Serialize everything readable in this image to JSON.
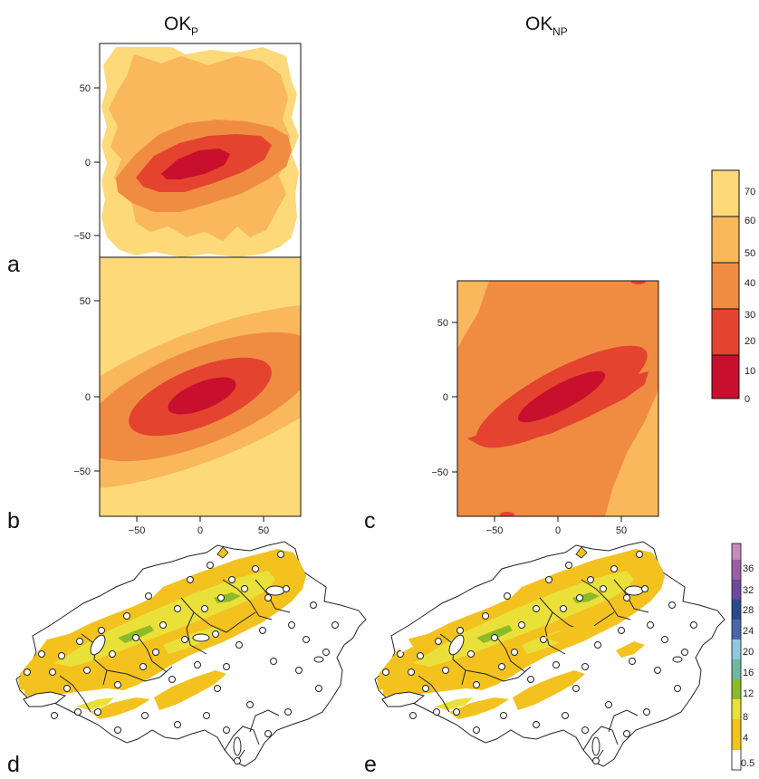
{
  "figure": {
    "col_left": {
      "main": "OK",
      "sub": "P"
    },
    "col_right": {
      "main": "OK",
      "sub": "NP"
    },
    "panel_labels": {
      "a": "a",
      "b": "b",
      "c": "c",
      "d": "d",
      "e": "e"
    }
  },
  "chart_data": [
    {
      "type": "heatmap",
      "panel": "a",
      "description_type": "filled contour",
      "xlim": [
        -80,
        80
      ],
      "ylim": [
        -80,
        80
      ],
      "ytick_labels": [
        "50",
        "0",
        "−50"
      ],
      "center_value_band": "0-10",
      "ellipse_angle_deg": 22
    },
    {
      "type": "heatmap",
      "panel": "b",
      "xlim": [
        -80,
        80
      ],
      "ylim": [
        -80,
        80
      ],
      "xtick_labels": [
        "−50",
        "0",
        "50"
      ],
      "ytick_labels": [
        "50",
        "0",
        "−50"
      ],
      "ellipse_angle_deg": 22
    },
    {
      "type": "heatmap",
      "panel": "c",
      "xlim": [
        -80,
        80
      ],
      "ylim": [
        -80,
        80
      ],
      "xtick_labels": [
        "−50",
        "0",
        "50"
      ],
      "ytick_labels": [
        "50",
        "0",
        "−50"
      ],
      "ellipse_angle_deg": 28
    },
    {
      "type": "heatmap",
      "panel": "d",
      "map": "Switzerland",
      "station_markers": "open circles"
    },
    {
      "type": "heatmap",
      "panel": "e",
      "map": "Switzerland",
      "station_markers": "open circles"
    }
  ],
  "legend_top": {
    "labels": [
      "70",
      "60",
      "50",
      "40",
      "30",
      "20",
      "10",
      "0"
    ],
    "colors": [
      "#fdd97a",
      "#f9b85b",
      "#f2924a",
      "#e4432f",
      "#c8102e"
    ]
  },
  "legend_bottom": {
    "labels": [
      "36",
      "32",
      "28",
      "24",
      "20",
      "16",
      "12",
      "8",
      "4",
      "0.5"
    ],
    "colors": [
      "#ffffff",
      "#f3c21f",
      "#eae03a",
      "#8bbb2a",
      "#6fb8a0",
      "#8fc9e0",
      "#4a67a8",
      "#2b4a8c",
      "#6b4a9c",
      "#9c5fa6",
      "#c48bc0"
    ]
  },
  "colors": {
    "c70": "#fdd97a",
    "c60": "#f9b85b",
    "c50": "#f5a84f",
    "c40": "#f08c42",
    "c30": "#e4432f",
    "c20": "#e03c2c",
    "c10": "#c8102e"
  }
}
